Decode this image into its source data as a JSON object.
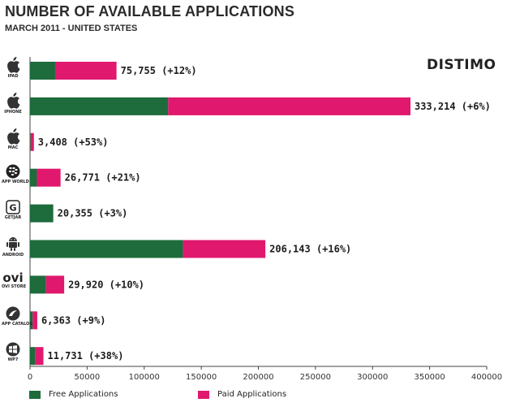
{
  "header": {
    "title": "NUMBER OF AVAILABLE APPLICATIONS",
    "subtitle": "MARCH 2011  - UNITED STATES",
    "brand": "DISTIMO"
  },
  "colors": {
    "free": "#1e6b3c",
    "paid": "#e0186e"
  },
  "legend": {
    "free": "Free Applications",
    "paid": "Paid Applications"
  },
  "platforms": [
    {
      "icon": "apple-icon",
      "caption": "IPAD"
    },
    {
      "icon": "apple-icon",
      "caption": "IPHONE"
    },
    {
      "icon": "apple-icon",
      "caption": "MAC"
    },
    {
      "icon": "blackberry-icon",
      "caption": "APP WORLD"
    },
    {
      "icon": "getjar-icon",
      "caption": "GETJAR"
    },
    {
      "icon": "android-icon",
      "caption": "ANDROID"
    },
    {
      "icon": "ovi-icon",
      "caption": "OVI STORE"
    },
    {
      "icon": "palm-icon",
      "caption": "APP CATALOG"
    },
    {
      "icon": "windows-icon",
      "caption": "WP7"
    }
  ],
  "chart_data": {
    "type": "bar",
    "orientation": "horizontal",
    "stacked": true,
    "title": "NUMBER OF AVAILABLE APPLICATIONS",
    "subtitle": "MARCH 2011  - UNITED STATES",
    "categories": [
      "IPAD",
      "IPHONE",
      "MAC",
      "APP WORLD",
      "GETJAR",
      "ANDROID",
      "OVI STORE",
      "APP CATALOG",
      "WP7"
    ],
    "series": [
      {
        "name": "Free Applications",
        "color": "#1e6b3c",
        "values": [
          22000,
          121000,
          600,
          6000,
          20355,
          134000,
          14000,
          2300,
          4500
        ]
      },
      {
        "name": "Paid Applications",
        "color": "#e0186e",
        "values": [
          53755,
          212214,
          2808,
          20771,
          0,
          72143,
          15920,
          4063,
          7231
        ]
      }
    ],
    "data_labels": [
      "75,755 (+12%)",
      "333,214 (+6%)",
      "3,408 (+53%)",
      "26,771 (+21%)",
      "20,355 (+3%)",
      "206,143 (+16%)",
      "29,920 (+10%)",
      "6,363 (+9%)",
      "11,731 (+38%)"
    ],
    "xlim": [
      0,
      400000
    ],
    "xticks": [
      0,
      50000,
      100000,
      150000,
      200000,
      250000,
      300000,
      350000,
      400000
    ],
    "xtick_labels": [
      "0",
      "50000",
      "100000",
      "150000",
      "200000",
      "250000",
      "300000",
      "350000",
      "400000"
    ],
    "grid": false,
    "legend_position": "bottom"
  }
}
